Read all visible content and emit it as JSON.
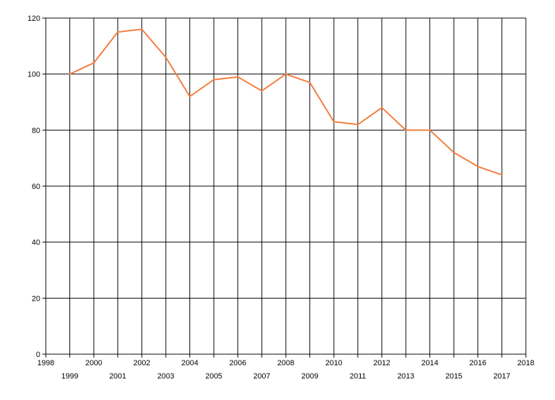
{
  "chart_data": {
    "type": "line",
    "x": [
      1999,
      2000,
      2001,
      2002,
      2003,
      2004,
      2005,
      2006,
      2007,
      2008,
      2009,
      2010,
      2011,
      2012,
      2013,
      2014,
      2015,
      2016,
      2017
    ],
    "series": [
      {
        "values": [
          100,
          104,
          115,
          116,
          106,
          92,
          98,
          99,
          94,
          100,
          97,
          83,
          82,
          88,
          80,
          80,
          72,
          67,
          64
        ]
      }
    ],
    "xlim": [
      1998,
      2018
    ],
    "ylim": [
      0,
      120
    ],
    "x_ticks": [
      "1998",
      "1999",
      "2000",
      "2001",
      "2002",
      "2003",
      "2004",
      "2005",
      "2006",
      "2007",
      "2008",
      "2009",
      "2010",
      "2011",
      "2012",
      "2013",
      "2014",
      "2015",
      "2016",
      "2017",
      "2018"
    ],
    "y_ticks": [
      "0",
      "20",
      "40",
      "60",
      "80",
      "100",
      "120"
    ],
    "grid": true,
    "line_color": "#f47c3c",
    "grid_color": "#000000"
  }
}
